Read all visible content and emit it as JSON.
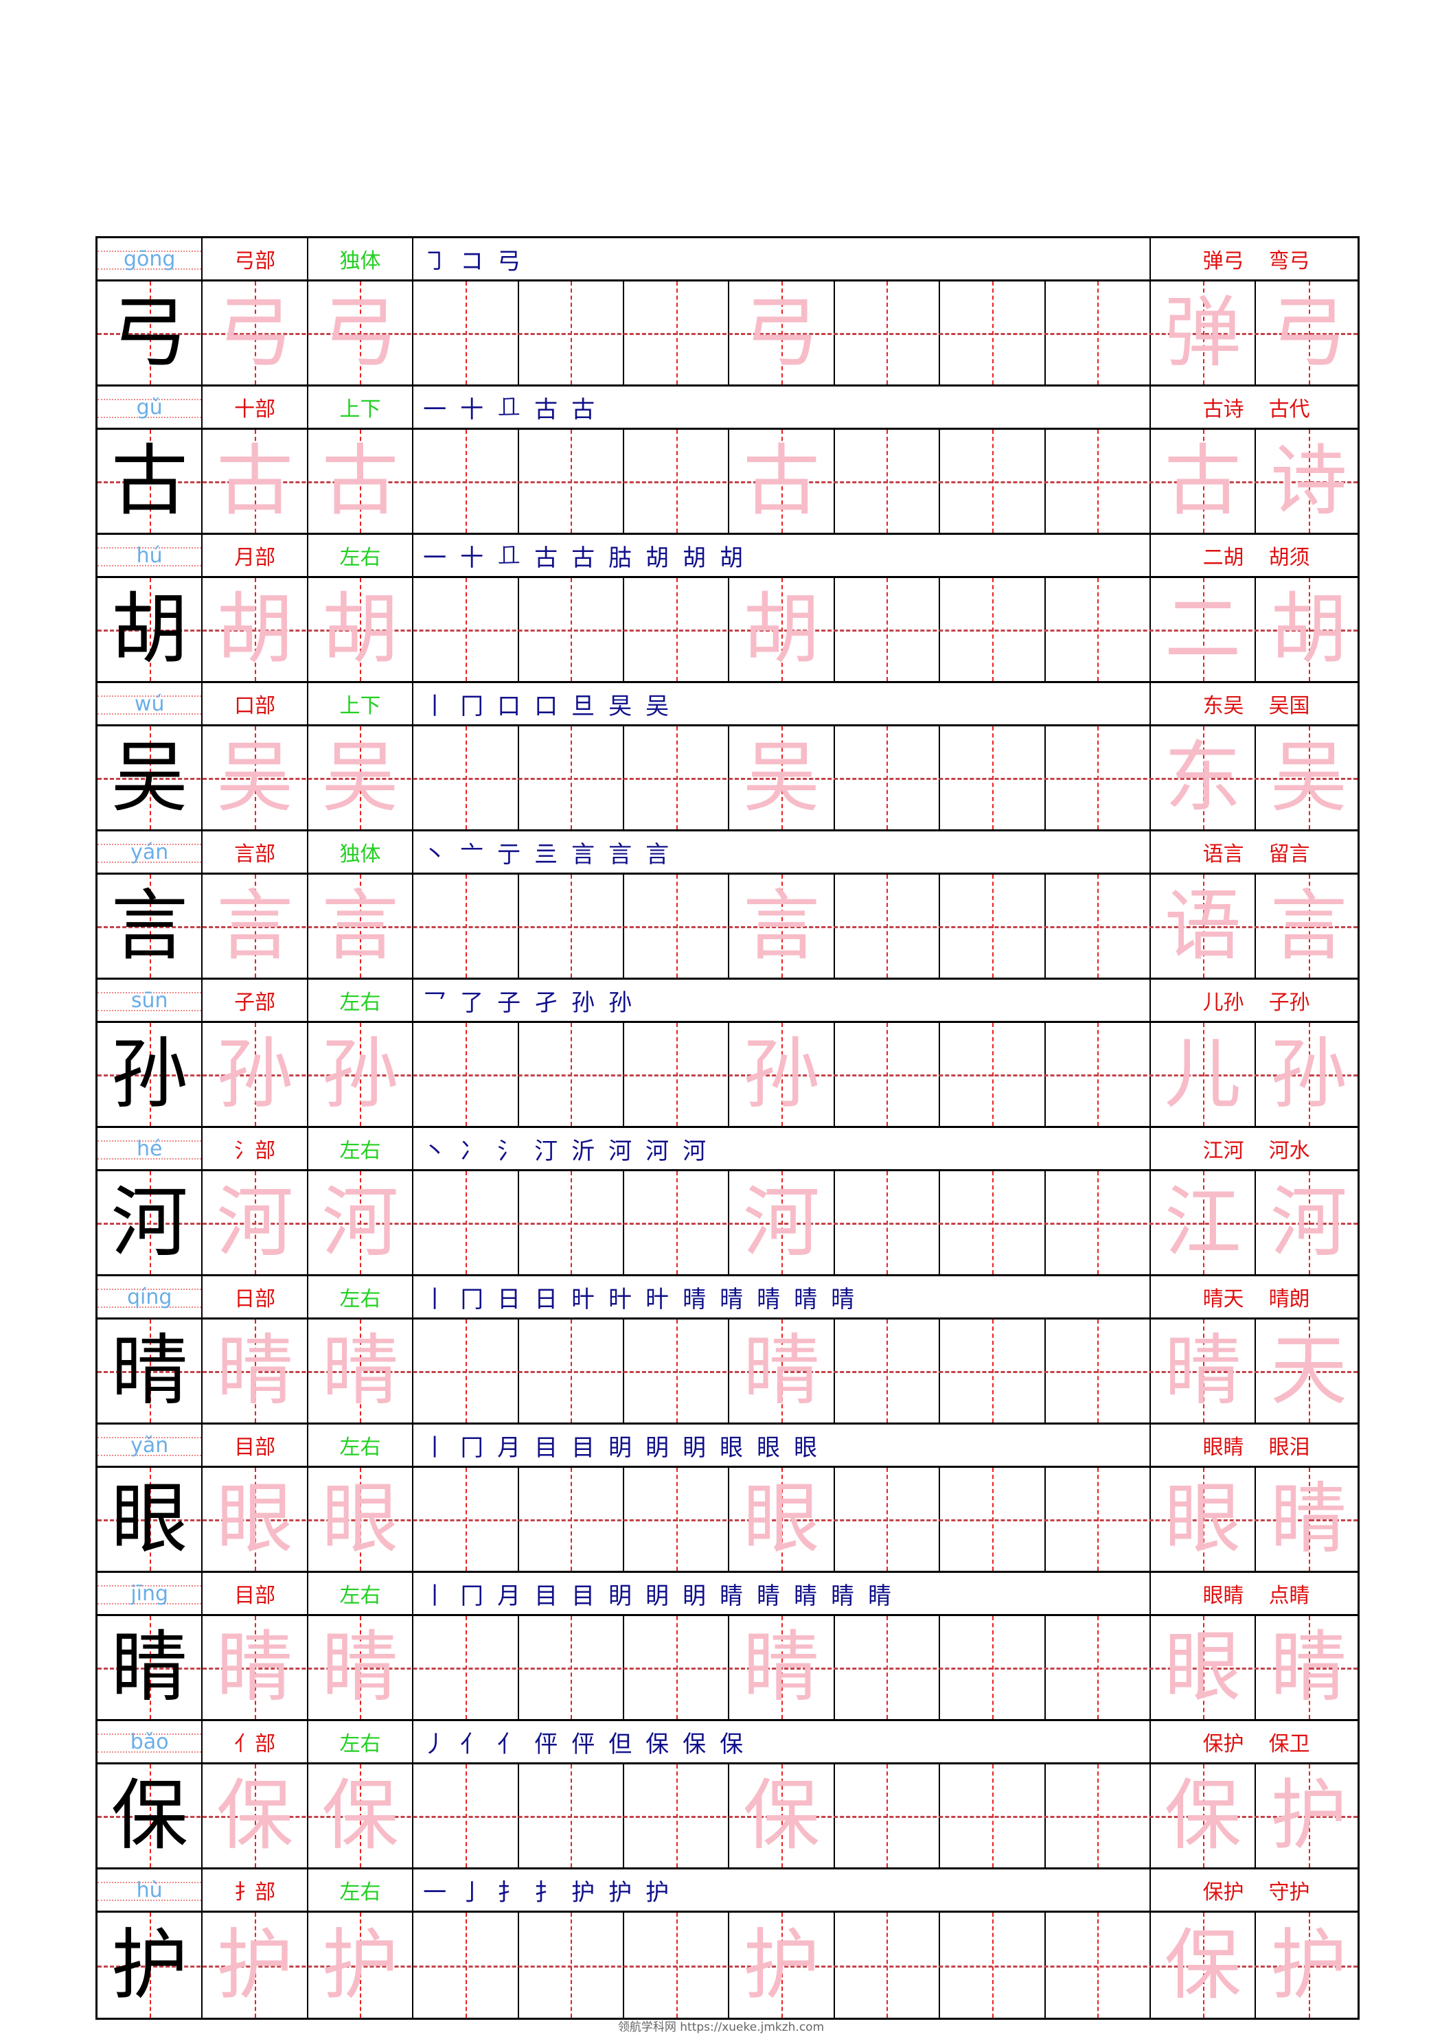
{
  "colors": {
    "pinyin": "#6aaee8",
    "radical": "#e01010",
    "structure": "#22d022",
    "strokes": "#10108a",
    "trace": "#f7bcc8",
    "grid": "#e82020"
  },
  "rows": [
    {
      "char": "弓",
      "pinyin": "gōng",
      "radical": "弓部",
      "structure": "独体",
      "strokes": [
        "㇆",
        "コ",
        "弓"
      ],
      "words": [
        "弹弓",
        "弯弓"
      ],
      "practice": [
        "弹",
        "弓"
      ]
    },
    {
      "char": "古",
      "pinyin": "gǔ",
      "radical": "十部",
      "structure": "上下",
      "strokes": [
        "一",
        "十",
        "𠀃",
        "古",
        "古"
      ],
      "words": [
        "古诗",
        "古代"
      ],
      "practice": [
        "古",
        "诗"
      ]
    },
    {
      "char": "胡",
      "pinyin": "hú",
      "radical": "月部",
      "structure": "左右",
      "strokes": [
        "一",
        "十",
        "𠀃",
        "古",
        "古",
        "𦙶",
        "胡",
        "胡",
        "胡"
      ],
      "words": [
        "二胡",
        "胡须"
      ],
      "practice": [
        "二",
        "胡"
      ]
    },
    {
      "char": "吴",
      "pinyin": "wú",
      "radical": "口部",
      "structure": "上下",
      "strokes": [
        "丨",
        "冂",
        "口",
        "口",
        "旦",
        "旲",
        "吴"
      ],
      "words": [
        "东吴",
        "吴国"
      ],
      "practice": [
        "东",
        "吴"
      ]
    },
    {
      "char": "言",
      "pinyin": "yán",
      "radical": "言部",
      "structure": "独体",
      "strokes": [
        "丶",
        "亠",
        "亍",
        "亖",
        "言",
        "言",
        "言"
      ],
      "words": [
        "语言",
        "留言"
      ],
      "practice": [
        "语",
        "言"
      ]
    },
    {
      "char": "孙",
      "pinyin": "sūn",
      "radical": "子部",
      "structure": "左右",
      "strokes": [
        "乛",
        "了",
        "子",
        "孑",
        "孙",
        "孙"
      ],
      "words": [
        "儿孙",
        "子孙"
      ],
      "practice": [
        "儿",
        "孙"
      ]
    },
    {
      "char": "河",
      "pinyin": "hé",
      "radical": "氵部",
      "structure": "左右",
      "strokes": [
        "丶",
        "冫",
        "氵",
        "汀",
        "沂",
        "河",
        "河",
        "河"
      ],
      "words": [
        "江河",
        "河水"
      ],
      "practice": [
        "江",
        "河"
      ]
    },
    {
      "char": "晴",
      "pinyin": "qíng",
      "radical": "日部",
      "structure": "左右",
      "strokes": [
        "丨",
        "冂",
        "日",
        "日",
        "旪",
        "旪",
        "旪",
        "晴",
        "晴",
        "晴",
        "晴",
        "晴"
      ],
      "words": [
        "晴天",
        "晴朗"
      ],
      "practice": [
        "晴",
        "天"
      ]
    },
    {
      "char": "眼",
      "pinyin": "yǎn",
      "radical": "目部",
      "structure": "左右",
      "strokes": [
        "丨",
        "冂",
        "月",
        "目",
        "目",
        "眀",
        "眀",
        "眀",
        "眼",
        "眼",
        "眼"
      ],
      "words": [
        "眼睛",
        "眼泪"
      ],
      "practice": [
        "眼",
        "睛"
      ]
    },
    {
      "char": "睛",
      "pinyin": "jīng",
      "radical": "目部",
      "structure": "左右",
      "strokes": [
        "丨",
        "冂",
        "月",
        "目",
        "目",
        "眀",
        "眀",
        "眀",
        "睛",
        "睛",
        "睛",
        "睛",
        "睛"
      ],
      "words": [
        "眼睛",
        "点睛"
      ],
      "practice": [
        "眼",
        "睛"
      ]
    },
    {
      "char": "保",
      "pinyin": "bǎo",
      "radical": "亻部",
      "structure": "左右",
      "strokes": [
        "丿",
        "亻",
        "亻",
        "伻",
        "伻",
        "但",
        "保",
        "保",
        "保"
      ],
      "words": [
        "保护",
        "保卫"
      ],
      "practice": [
        "保",
        "护"
      ]
    },
    {
      "char": "护",
      "pinyin": "hù",
      "radical": "扌部",
      "structure": "左右",
      "strokes": [
        "一",
        "亅",
        "扌",
        "扌",
        "护",
        "护",
        "护"
      ],
      "words": [
        "保护",
        "守护"
      ],
      "practice": [
        "保",
        "护"
      ]
    }
  ],
  "footer": "领航学科网 https://xueke.jmkzh.com"
}
